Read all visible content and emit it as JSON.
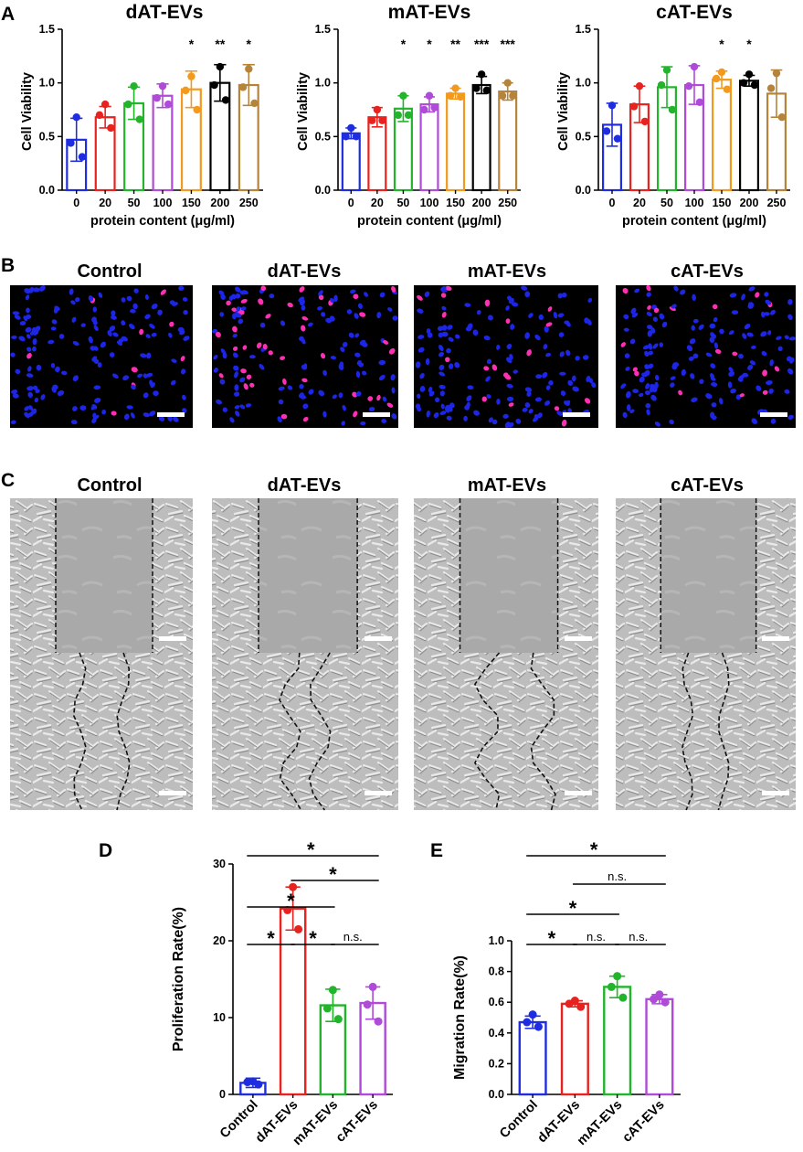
{
  "panels": {
    "A": "A",
    "B": "B",
    "C": "C",
    "D": "D",
    "E": "E"
  },
  "colors": [
    "#1f2de0",
    "#e8231f",
    "#22b42a",
    "#b04ad8",
    "#f39a1e",
    "#000000",
    "#b5843a"
  ],
  "colors4": [
    "#1f2de0",
    "#e8231f",
    "#22b42a",
    "#b04ad8"
  ],
  "fluorescence": {
    "titles": [
      "Control",
      "dAT-EVs",
      "mAT-EVs",
      "cAT-EVs"
    ],
    "pink_density": [
      0.05,
      0.3,
      0.12,
      0.1
    ]
  },
  "scratch": {
    "titles": [
      "Control",
      "dAT-EVs",
      "mAT-EVs",
      "cAT-EVs"
    ]
  },
  "chart_data": [
    {
      "type": "bar",
      "title": "dAT-EVs",
      "xlabel": "protein content (μg/ml)",
      "ylabel": "Cell Viability",
      "ylim": [
        0,
        1.5
      ],
      "yticks": [
        "0.0",
        "0.5",
        "1.0",
        "1.5"
      ],
      "categories": [
        "0",
        "20",
        "50",
        "100",
        "150",
        "200",
        "250"
      ],
      "values": [
        0.47,
        0.68,
        0.81,
        0.88,
        0.94,
        1.0,
        0.98
      ],
      "errors": [
        0.2,
        0.1,
        0.15,
        0.11,
        0.17,
        0.17,
        0.19
      ],
      "points": [
        [
          0.68,
          0.44,
          0.31
        ],
        [
          0.8,
          0.7,
          0.58
        ],
        [
          0.97,
          0.8,
          0.66
        ],
        [
          0.97,
          0.86,
          0.8
        ],
        [
          1.06,
          0.93,
          0.75
        ],
        [
          1.15,
          0.98,
          0.84
        ],
        [
          1.13,
          0.96,
          0.81
        ]
      ],
      "annotations": [
        "",
        "",
        "",
        "",
        "*",
        "**",
        "*"
      ]
    },
    {
      "type": "bar",
      "title": "mAT-EVs",
      "xlabel": "protein content (μg/ml)",
      "ylabel": "Cell Viability",
      "ylim": [
        0,
        1.5
      ],
      "yticks": [
        "0.0",
        "0.5",
        "1.0",
        "1.5"
      ],
      "categories": [
        "0",
        "20",
        "50",
        "100",
        "150",
        "200",
        "250"
      ],
      "values": [
        0.53,
        0.68,
        0.76,
        0.8,
        0.9,
        0.98,
        0.92
      ],
      "errors": [
        0.05,
        0.09,
        0.12,
        0.07,
        0.05,
        0.08,
        0.08
      ],
      "points": [
        [
          0.58,
          0.5,
          0.5
        ],
        [
          0.75,
          0.65,
          0.65
        ],
        [
          0.88,
          0.7,
          0.7
        ],
        [
          0.88,
          0.75,
          0.77
        ],
        [
          0.95,
          0.88,
          0.87
        ],
        [
          1.08,
          0.95,
          0.93
        ],
        [
          1.0,
          0.88,
          0.88
        ]
      ],
      "annotations": [
        "",
        "",
        "*",
        "*",
        "**",
        "***",
        "***"
      ]
    },
    {
      "type": "bar",
      "title": "cAT-EVs",
      "xlabel": "protein content (μg/ml)",
      "ylabel": "Cell Viability",
      "ylim": [
        0,
        1.5
      ],
      "yticks": [
        "0.0",
        "0.5",
        "1.0",
        "1.5"
      ],
      "categories": [
        "0",
        "20",
        "50",
        "100",
        "150",
        "200",
        "250"
      ],
      "values": [
        0.61,
        0.8,
        0.96,
        0.98,
        1.03,
        1.02,
        0.9
      ],
      "errors": [
        0.2,
        0.17,
        0.19,
        0.18,
        0.08,
        0.05,
        0.22
      ],
      "points": [
        [
          0.79,
          0.55,
          0.48
        ],
        [
          0.97,
          0.78,
          0.64
        ],
        [
          1.12,
          0.98,
          0.75
        ],
        [
          1.15,
          0.97,
          0.82
        ],
        [
          1.1,
          1.04,
          0.94
        ],
        [
          1.08,
          1.0,
          0.98
        ],
        [
          1.09,
          0.95,
          0.68
        ]
      ],
      "annotations": [
        "",
        "",
        "",
        "",
        "*",
        "*",
        ""
      ]
    },
    {
      "type": "bar",
      "ylabel": "Proliferation Rate(%)",
      "ylim": [
        0,
        30
      ],
      "yticks": [
        "0",
        "10",
        "20",
        "30"
      ],
      "categories": [
        "Control",
        "dAT-EVs",
        "mAT-EVs",
        "cAT-EVs"
      ],
      "values": [
        1.5,
        24.2,
        11.6,
        11.9
      ],
      "errors": [
        0.6,
        2.8,
        2.1,
        2.1
      ],
      "points": [
        [
          1.7,
          1.6,
          1.3
        ],
        [
          27.0,
          24.0,
          21.5
        ],
        [
          13.6,
          11.2,
          9.8
        ],
        [
          14.0,
          11.7,
          9.5
        ]
      ],
      "significance": [
        {
          "from": 0,
          "to": 3,
          "label": "*"
        },
        {
          "from": 1,
          "to": 3,
          "label": "*"
        },
        {
          "from": 0,
          "to": 2,
          "label": "*"
        },
        {
          "from": 0,
          "to": 1,
          "label": "*"
        },
        {
          "from": 1,
          "to": 2,
          "label": "*"
        },
        {
          "from": 2,
          "to": 3,
          "label": "n.s."
        }
      ]
    },
    {
      "type": "bar",
      "ylabel": "Migration Rate(%)",
      "ylim": [
        0,
        1.0
      ],
      "yticks": [
        "0.0",
        "0.2",
        "0.4",
        "0.6",
        "0.8",
        "1.0"
      ],
      "categories": [
        "Control",
        "dAT-EVs",
        "mAT-EVs",
        "cAT-EVs"
      ],
      "values": [
        0.47,
        0.59,
        0.7,
        0.62
      ],
      "errors": [
        0.04,
        0.02,
        0.07,
        0.03
      ],
      "points": [
        [
          0.52,
          0.47,
          0.44
        ],
        [
          0.61,
          0.59,
          0.57
        ],
        [
          0.77,
          0.7,
          0.63
        ],
        [
          0.65,
          0.62,
          0.6
        ]
      ],
      "significance": [
        {
          "from": 0,
          "to": 3,
          "label": "*"
        },
        {
          "from": 1,
          "to": 3,
          "label": "n.s."
        },
        {
          "from": 0,
          "to": 2,
          "label": "*"
        },
        {
          "from": 0,
          "to": 1,
          "label": "*"
        },
        {
          "from": 1,
          "to": 2,
          "label": "n.s."
        },
        {
          "from": 2,
          "to": 3,
          "label": "n.s."
        }
      ]
    }
  ]
}
